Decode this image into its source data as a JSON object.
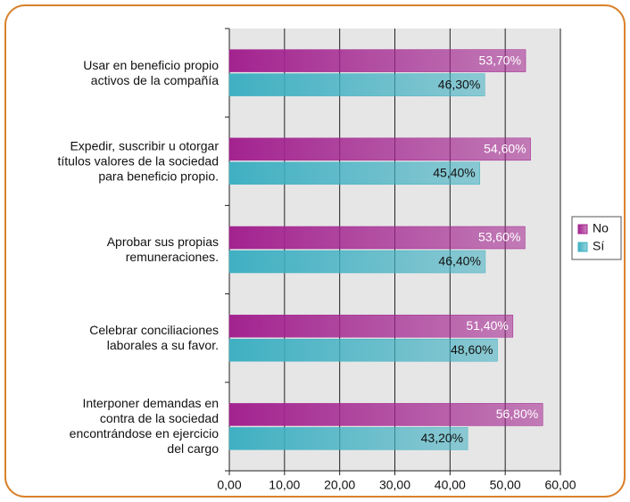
{
  "chart_data": {
    "type": "bar",
    "orientation": "horizontal",
    "categories": [
      "Usar en beneficio propio\nactivos de la compañía",
      "Expedir, suscribir u otorgar\ntítulos valores de la sociedad\npara beneficio propio.",
      "Aprobar sus propias\nremuneraciones.",
      "Celebrar conciliaciones\nlaborales a su favor.",
      "Interponer demandas en\ncontra de la sociedad\nencontrándose en ejercicio\ndel cargo"
    ],
    "series": [
      {
        "name": "No",
        "color": "#a3238f",
        "values": [
          53.7,
          54.6,
          53.6,
          51.4,
          56.8
        ],
        "value_labels": [
          "53,70%",
          "54,60%",
          "53,60%",
          "51,40%",
          "56,80%"
        ]
      },
      {
        "name": "Sí",
        "color": "#3fb0c2",
        "values": [
          46.3,
          45.4,
          46.4,
          48.6,
          43.2
        ],
        "value_labels": [
          "46,30%",
          "45,40%",
          "46,40%",
          "48,60%",
          "43,20%"
        ]
      }
    ],
    "xlim": [
      0,
      60
    ],
    "xticks": [
      {
        "value": 0,
        "label": "0,00"
      },
      {
        "value": 10,
        "label": "10,00"
      },
      {
        "value": 20,
        "label": "20,00"
      },
      {
        "value": 30,
        "label": "30,00"
      },
      {
        "value": 40,
        "label": "40,00"
      },
      {
        "value": 50,
        "label": "50,00"
      },
      {
        "value": 60,
        "label": "60,00"
      }
    ],
    "grid": true,
    "legend": "right"
  }
}
